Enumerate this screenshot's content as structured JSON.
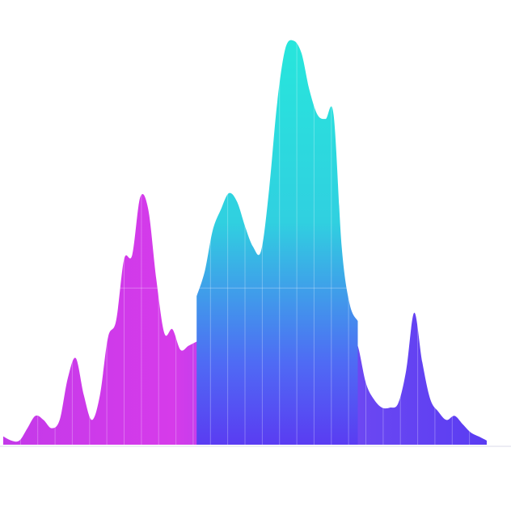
{
  "chart_data": {
    "type": "area",
    "title": "",
    "xlabel": "",
    "ylabel": "",
    "grid": true,
    "ylim": [
      0,
      100
    ],
    "colors": {
      "magenta": "#d63bea",
      "violet": "#9b45f0",
      "blue": "#4f6af4",
      "indigo": "#5a3cf2",
      "cyan": "#27e6dc",
      "teal": "#30d0e0"
    },
    "series": [
      {
        "x": [
          0,
          1,
          2,
          3,
          4,
          5,
          6,
          7,
          8,
          9,
          10,
          11,
          12,
          13,
          14,
          15,
          16,
          17,
          18,
          19,
          20,
          21,
          22,
          23,
          24,
          25,
          26,
          27,
          28,
          29,
          30,
          31,
          32,
          33,
          34,
          35,
          36,
          37,
          38,
          39,
          40,
          41,
          42,
          43,
          44,
          45,
          46,
          47,
          48,
          49,
          50,
          51,
          52,
          53,
          54,
          55,
          56,
          57,
          58,
          59,
          60
        ],
        "values": [
          2,
          1,
          1,
          4,
          7,
          6,
          4,
          6,
          16,
          21,
          12,
          6,
          12,
          26,
          30,
          45,
          46,
          60,
          57,
          40,
          27,
          28,
          23,
          24,
          25,
          26,
          25,
          24,
          26,
          27,
          28,
          28,
          25,
          24,
          22,
          23,
          25,
          27,
          28,
          30,
          34,
          35,
          37,
          28,
          24,
          15,
          11,
          9,
          9,
          10,
          18,
          32,
          20,
          11,
          8,
          6,
          7,
          5,
          3,
          2,
          1
        ]
      },
      {
        "x": [
          0,
          1,
          2,
          3,
          4,
          5,
          6,
          7,
          8,
          9,
          10,
          11,
          12,
          13,
          14,
          15,
          16,
          17,
          18,
          19,
          20,
          21,
          22,
          23,
          24,
          25,
          26,
          27,
          28,
          29,
          30,
          31,
          32,
          33,
          34,
          35,
          36,
          37,
          38,
          39,
          40,
          41,
          42,
          43,
          44,
          45,
          46,
          47,
          48,
          49,
          50,
          51,
          52,
          53,
          54,
          55,
          56,
          57,
          58,
          59,
          60
        ],
        "values": [
          0,
          0,
          0,
          0,
          0,
          0,
          0,
          0,
          0,
          0,
          0,
          0,
          0,
          0,
          0,
          0,
          0,
          0,
          0,
          0,
          0,
          0,
          0,
          0,
          0,
          0,
          0,
          0,
          0,
          0,
          0,
          0,
          0,
          0,
          0,
          0,
          0,
          0,
          0,
          0,
          0,
          0,
          0,
          0,
          0,
          0,
          0,
          0,
          0,
          0,
          0,
          0,
          0,
          0,
          0,
          0,
          0,
          0,
          0,
          0,
          0
        ]
      },
      {
        "x": [
          24,
          25,
          26,
          27,
          28,
          29,
          30,
          31,
          32,
          33,
          34,
          35,
          36,
          37,
          38,
          39,
          40,
          41,
          42,
          43,
          44
        ],
        "values": [
          36,
          42,
          52,
          57,
          61,
          59,
          53,
          48,
          47,
          62,
          83,
          96,
          98,
          95,
          86,
          80,
          79,
          80,
          48,
          34,
          30
        ]
      }
    ]
  }
}
